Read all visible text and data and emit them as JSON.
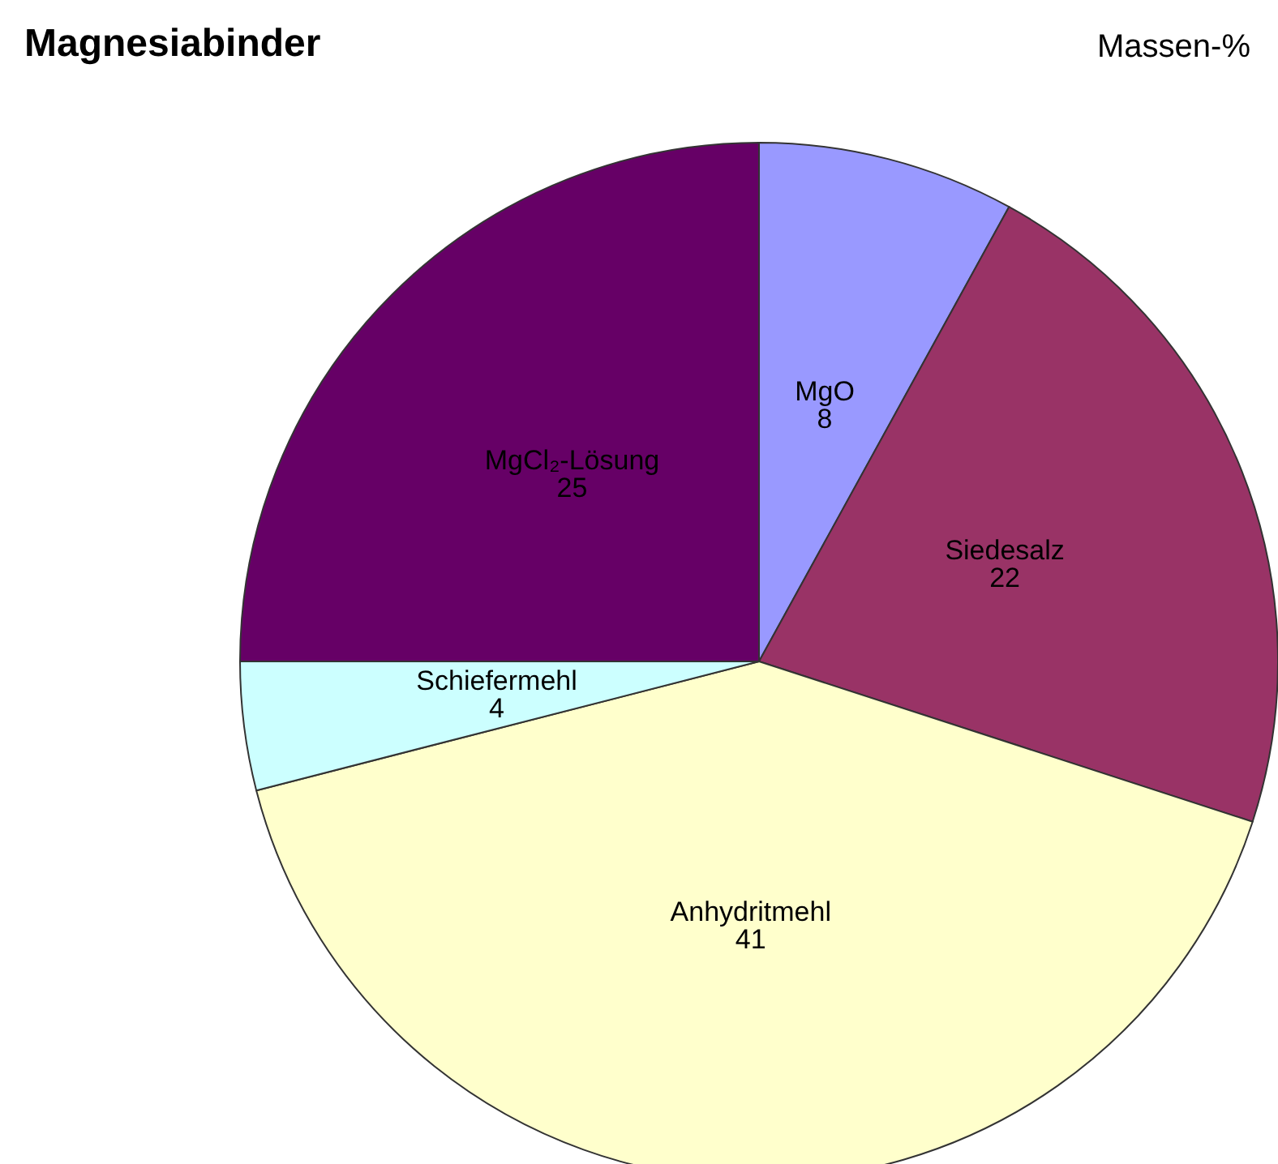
{
  "chart_data": {
    "type": "pie",
    "title": "Magnesiabinder",
    "annotations": [
      "Massen-%"
    ],
    "categories": [
      "MgO",
      "Siedesalz",
      "Anhydritmehl",
      "Schiefermehl",
      "MgCl₂-Lösung"
    ],
    "values": [
      8,
      22,
      41,
      4,
      25
    ],
    "colors": [
      "#9999ff",
      "#993366",
      "#ffffcc",
      "#ccffff",
      "#660066"
    ],
    "data_labels": true,
    "legend": false
  }
}
